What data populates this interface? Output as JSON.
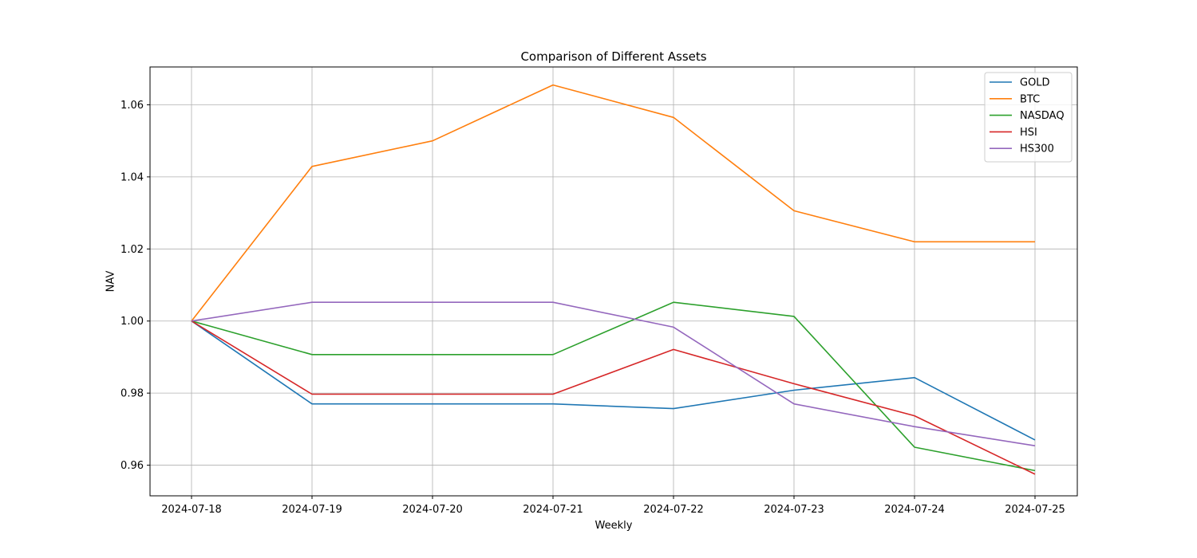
{
  "chart_data": {
    "type": "line",
    "title": "Comparison of Different Assets",
    "xlabel": "Weekly",
    "ylabel": "NAV",
    "categories": [
      "2024-07-18",
      "2024-07-19",
      "2024-07-20",
      "2024-07-21",
      "2024-07-22",
      "2024-07-23",
      "2024-07-24",
      "2024-07-25"
    ],
    "ylim": [
      0.9515,
      1.0705
    ],
    "yticks": [
      0.96,
      0.98,
      1.0,
      1.02,
      1.04,
      1.06
    ],
    "ytick_labels": [
      "0.96",
      "0.98",
      "1.00",
      "1.02",
      "1.04",
      "1.06"
    ],
    "grid": true,
    "legend_position": "top-right",
    "series": [
      {
        "name": "GOLD",
        "color": "#1f77b4",
        "values": [
          1.0,
          0.977,
          0.977,
          0.977,
          0.9757,
          0.9808,
          0.9843,
          0.967
        ]
      },
      {
        "name": "BTC",
        "color": "#ff7f0e",
        "values": [
          1.0,
          1.0429,
          1.05,
          1.0655,
          1.0565,
          1.0306,
          1.022,
          1.022
        ]
      },
      {
        "name": "NASDAQ",
        "color": "#2ca02c",
        "values": [
          1.0,
          0.9907,
          0.9907,
          0.9907,
          1.0052,
          1.0013,
          0.965,
          0.9585
        ]
      },
      {
        "name": "HSI",
        "color": "#d62728",
        "values": [
          1.0,
          0.9797,
          0.9797,
          0.9797,
          0.9921,
          0.9826,
          0.9737,
          0.9575
        ]
      },
      {
        "name": "HS300",
        "color": "#9467bd",
        "values": [
          1.0,
          1.0052,
          1.0052,
          1.0052,
          0.9983,
          0.977,
          0.9707,
          0.9654
        ]
      }
    ]
  }
}
